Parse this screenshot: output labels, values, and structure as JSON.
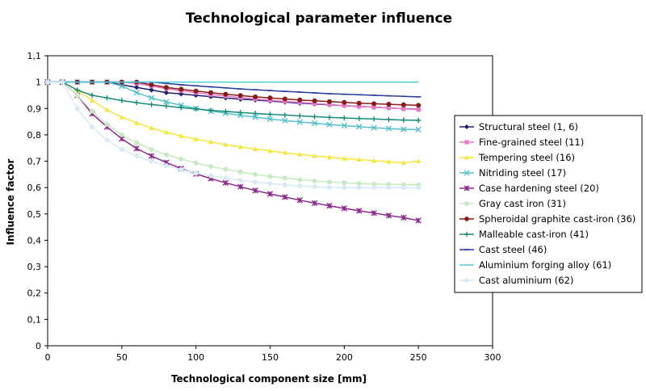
{
  "chart_data": {
    "type": "line",
    "title": "Technological parameter influence",
    "xlabel": "Technological component size [mm]",
    "ylabel": "Influence factor",
    "xlim": [
      0,
      300
    ],
    "ylim": [
      0,
      1.1
    ],
    "xticks": [
      0,
      50,
      100,
      150,
      200,
      250,
      300
    ],
    "yticks": [
      0,
      0.1,
      0.2,
      0.3,
      0.4,
      0.5,
      0.6,
      0.7,
      0.8,
      0.9,
      1.0,
      1.1
    ],
    "xtick_labels": [
      "0",
      "50",
      "100",
      "150",
      "200",
      "250",
      "300"
    ],
    "ytick_labels": [
      "0",
      "0,1",
      "0,2",
      "0,3",
      "0,4",
      "0,5",
      "0,6",
      "0,7",
      "0,8",
      "0,9",
      "1",
      "1,1"
    ],
    "grid": false,
    "legend_position": "right",
    "x": [
      0,
      10,
      20,
      30,
      40,
      50,
      60,
      70,
      80,
      90,
      100,
      110,
      120,
      130,
      140,
      150,
      160,
      170,
      180,
      190,
      200,
      210,
      220,
      230,
      240,
      250
    ],
    "series": [
      {
        "name": "Structural steel (1, 6)",
        "color": "#1f1f6e",
        "marker": "diamond",
        "values": [
          1,
          1,
          1,
          1,
          1,
          0.99,
          0.98,
          0.97,
          0.96,
          0.955,
          0.95,
          0.945,
          0.94,
          0.935,
          0.932,
          0.928,
          0.924,
          0.92,
          0.917,
          0.914,
          0.911,
          0.908,
          0.905,
          0.902,
          0.899,
          0.897
        ]
      },
      {
        "name": "Fine-grained steel (11)",
        "color": "#e879c8",
        "marker": "square",
        "values": [
          1,
          1,
          1,
          1,
          1,
          1,
          0.995,
          0.985,
          0.975,
          0.967,
          0.96,
          0.953,
          0.947,
          0.941,
          0.936,
          0.931,
          0.927,
          0.923,
          0.919,
          0.915,
          0.911,
          0.908,
          0.905,
          0.902,
          0.899,
          0.896
        ]
      },
      {
        "name": "Tempering steel (16)",
        "color": "#f5e63c",
        "marker": "triangle",
        "values": [
          1,
          1,
          0.97,
          0.93,
          0.895,
          0.867,
          0.845,
          0.826,
          0.81,
          0.796,
          0.784,
          0.773,
          0.763,
          0.754,
          0.746,
          0.739,
          0.732,
          0.726,
          0.72,
          0.715,
          0.71,
          0.706,
          0.702,
          0.698,
          0.694,
          0.7
        ]
      },
      {
        "name": "Nitriding steel (17)",
        "color": "#55c0cc",
        "marker": "x",
        "values": [
          1,
          1,
          1,
          1,
          1,
          0.985,
          0.96,
          0.94,
          0.925,
          0.912,
          0.9,
          0.89,
          0.882,
          0.874,
          0.867,
          0.86,
          0.854,
          0.849,
          0.844,
          0.839,
          0.835,
          0.831,
          0.827,
          0.824,
          0.821,
          0.82
        ]
      },
      {
        "name": "Case hardening steel (20)",
        "color": "#8b2a8e",
        "marker": "star",
        "values": [
          1,
          1,
          0.95,
          0.88,
          0.83,
          0.785,
          0.748,
          0.72,
          0.695,
          0.672,
          0.652,
          0.634,
          0.618,
          0.603,
          0.589,
          0.576,
          0.564,
          0.552,
          0.541,
          0.531,
          0.521,
          0.512,
          0.503,
          0.494,
          0.486,
          0.475
        ]
      },
      {
        "name": "Gray cast iron (31)",
        "color": "#c9e8c4",
        "marker": "circle",
        "values": [
          1,
          1,
          0.95,
          0.89,
          0.84,
          0.8,
          0.77,
          0.745,
          0.725,
          0.708,
          0.693,
          0.68,
          0.669,
          0.659,
          0.65,
          0.642,
          0.636,
          0.63,
          0.625,
          0.621,
          0.618,
          0.615,
          0.613,
          0.612,
          0.611,
          0.61
        ]
      },
      {
        "name": "Spheroidal graphite cast-iron (36)",
        "color": "#8b1a1a",
        "marker": "circle",
        "values": [
          1,
          1,
          1,
          1,
          1,
          1,
          1,
          0.99,
          0.98,
          0.973,
          0.966,
          0.96,
          0.954,
          0.949,
          0.944,
          0.94,
          0.936,
          0.932,
          0.929,
          0.926,
          0.923,
          0.92,
          0.918,
          0.916,
          0.914,
          0.912
        ]
      },
      {
        "name": "Malleable cast-iron (41)",
        "color": "#1a8c78",
        "marker": "plus",
        "values": [
          1,
          1,
          0.97,
          0.95,
          0.94,
          0.93,
          0.922,
          0.915,
          0.909,
          0.903,
          0.898,
          0.893,
          0.889,
          0.885,
          0.881,
          0.878,
          0.875,
          0.872,
          0.869,
          0.866,
          0.864,
          0.862,
          0.86,
          0.858,
          0.856,
          0.855
        ]
      },
      {
        "name": "Cast steel (46)",
        "color": "#2a3a9e",
        "marker": "dash",
        "values": [
          1,
          1,
          1,
          1,
          1,
          1,
          1,
          1,
          0.995,
          0.99,
          0.986,
          0.982,
          0.978,
          0.974,
          0.971,
          0.968,
          0.965,
          0.962,
          0.959,
          0.956,
          0.954,
          0.952,
          0.95,
          0.948,
          0.946,
          0.944
        ]
      },
      {
        "name": "Aluminium forging alloy (61)",
        "color": "#4ad0e0",
        "marker": "none",
        "values": [
          1,
          1,
          1,
          1,
          1,
          1,
          1,
          1,
          1,
          1,
          1,
          1,
          1,
          1,
          1,
          1,
          1,
          1,
          1,
          1,
          1,
          1,
          1,
          1,
          1,
          1
        ]
      },
      {
        "name": "Cast aluminium (62)",
        "color": "#d8eaf5",
        "marker": "circle",
        "values": [
          1,
          1,
          0.9,
          0.83,
          0.78,
          0.745,
          0.72,
          0.7,
          0.683,
          0.668,
          0.655,
          0.645,
          0.636,
          0.628,
          0.621,
          0.615,
          0.61,
          0.606,
          0.603,
          0.601,
          0.6,
          0.6,
          0.6,
          0.6,
          0.6,
          0.6
        ]
      }
    ]
  }
}
